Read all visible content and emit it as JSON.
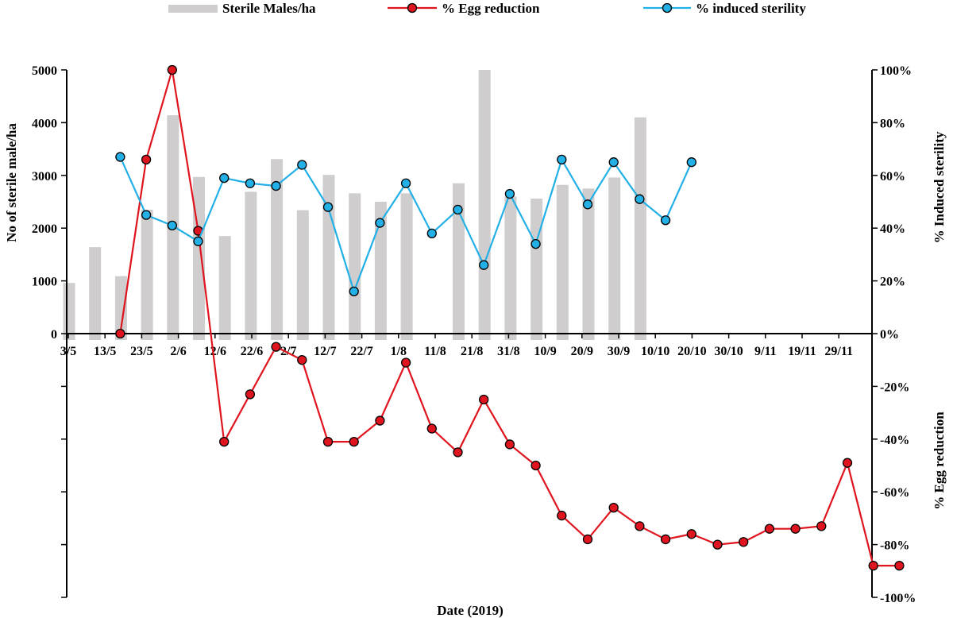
{
  "chart_data": {
    "type": "bar+line",
    "xlabel": "Date (2019)",
    "ylabel_left": "No of sterile male/ha",
    "ylabel_right_top": "% Induced sterility",
    "ylabel_right_bottom": "% Egg reduction",
    "x_tick_labels": [
      "3/5",
      "13/5",
      "23/5",
      "2/6",
      "12/6",
      "22/6",
      "2/7",
      "12/7",
      "22/7",
      "1/8",
      "11/8",
      "21/8",
      "31/8",
      "10/9",
      "20/9",
      "30/9",
      "10/10",
      "20/10",
      "30/10",
      "9/11",
      "19/11",
      "29/11"
    ],
    "left_axis": {
      "ticks": [
        0,
        1000,
        2000,
        3000,
        4000,
        5000
      ],
      "range": [
        0,
        5000
      ]
    },
    "right_axis": {
      "ticks": [
        "100%",
        "80%",
        "60%",
        "40%",
        "20%",
        "0%",
        "-20%",
        "-40%",
        "-60%",
        "-80%",
        "-100%"
      ],
      "range": [
        -100,
        100
      ]
    },
    "colors": {
      "bars": "#cfcdce",
      "egg": "#e0141e",
      "sterility": "#22b0e6"
    },
    "legend_position": "top",
    "series": [
      {
        "name": "Sterile Males/ha",
        "kind": "bar",
        "x": [
          0,
          1,
          2,
          3,
          4,
          5,
          6,
          7,
          8,
          9,
          10,
          11,
          12,
          13,
          15,
          16,
          17,
          18,
          19,
          20,
          21,
          22
        ],
        "values": [
          960,
          1640,
          1090,
          2350,
          4140,
          2970,
          1850,
          2690,
          3310,
          2340,
          3010,
          2660,
          2500,
          2660,
          2850,
          5000,
          2600,
          2560,
          2820,
          2750,
          2960,
          4100
        ]
      },
      {
        "name": "% Egg reduction",
        "kind": "line",
        "x": [
          2,
          3,
          4,
          5,
          6,
          7,
          8,
          9,
          10,
          11,
          12,
          13,
          14,
          15,
          16,
          17,
          18,
          19,
          20,
          21,
          22,
          23,
          24,
          25,
          26,
          27,
          28,
          29,
          30,
          31,
          32
        ],
        "values": [
          0,
          66,
          100,
          39,
          -41,
          -23,
          -5,
          -10,
          -41,
          -41,
          -33,
          -11,
          -36,
          -45,
          -25,
          -42,
          -50,
          -69,
          -78,
          -66,
          -73,
          -78,
          -76,
          -80,
          -79,
          -74,
          -74,
          -73,
          -49,
          -88,
          -88
        ]
      },
      {
        "name": "% induced sterility",
        "kind": "line",
        "x": [
          2,
          3,
          4,
          5,
          6,
          7,
          8,
          9,
          10,
          11,
          12,
          13,
          14,
          15,
          16,
          17,
          18,
          19,
          20,
          21,
          22,
          23,
          24
        ],
        "values": [
          67,
          45,
          41,
          35,
          59,
          57,
          56,
          64,
          48,
          16,
          42,
          57,
          38,
          47,
          26,
          53,
          34,
          66,
          49,
          65,
          51,
          43,
          65
        ]
      }
    ]
  }
}
